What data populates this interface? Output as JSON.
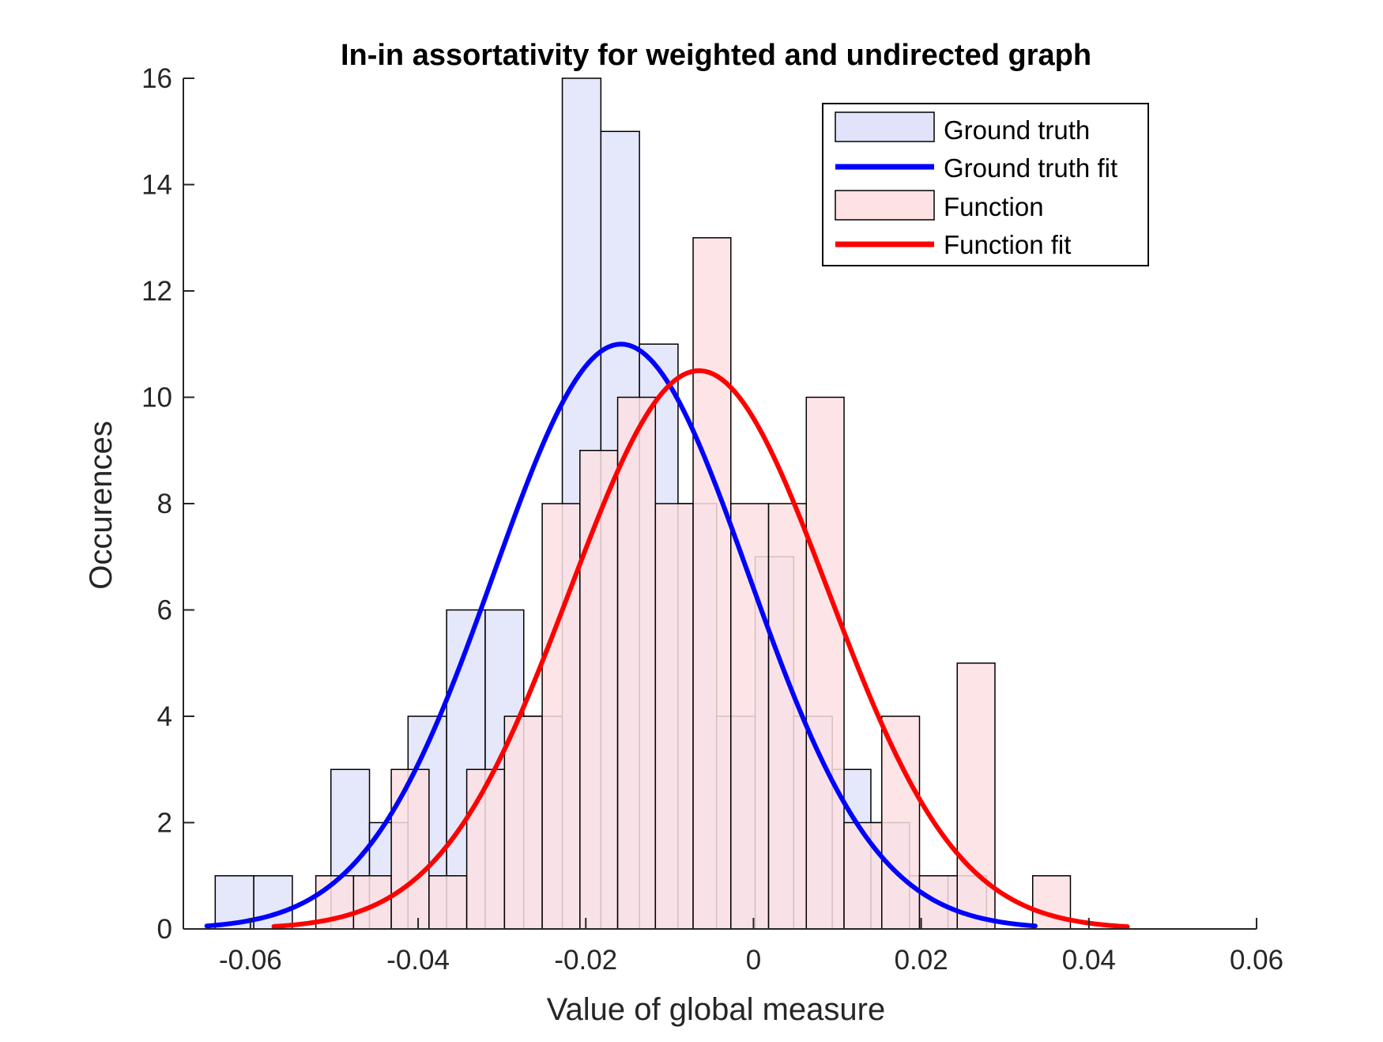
{
  "chart_data": {
    "type": "bar",
    "title": "In-in assortativity for weighted and undirected graph",
    "xlabel": "Value of global measure",
    "ylabel": "Occurences",
    "xlim": [
      -0.068,
      0.06
    ],
    "ylim": [
      0,
      16
    ],
    "xticks": [
      -0.06,
      -0.04,
      -0.02,
      0,
      0.02,
      0.04,
      0.06
    ],
    "xtick_labels": [
      "-0.06",
      "-0.04",
      "-0.02",
      "0",
      "0.02",
      "0.04",
      "0.06"
    ],
    "yticks": [
      0,
      2,
      4,
      6,
      8,
      10,
      12,
      14,
      16
    ],
    "ytick_labels": [
      "0",
      "2",
      "4",
      "6",
      "8",
      "10",
      "12",
      "14",
      "16"
    ],
    "grid": false,
    "legend_position": "top-right",
    "series": [
      {
        "name": "Ground truth",
        "kind": "histogram",
        "face_color": "#e0e3fa",
        "edge_color": "#000000",
        "bin_width": 0.0046,
        "bin_left_edges": [
          -0.0642,
          -0.0596,
          -0.055,
          -0.0504,
          -0.0458,
          -0.0412,
          -0.0366,
          -0.032,
          -0.0274,
          -0.0228,
          -0.0182,
          -0.0136,
          -0.009,
          -0.0044,
          0.0002,
          0.0048,
          0.0094,
          0.014,
          0.0186,
          0.0232
        ],
        "values": [
          1,
          1,
          0,
          3,
          2,
          4,
          6,
          6,
          4,
          16,
          15,
          11,
          8,
          4,
          7,
          4,
          3,
          2,
          1,
          1
        ]
      },
      {
        "name": "Ground truth fit",
        "kind": "normal_fit",
        "color": "#0000ff",
        "mu": -0.0158,
        "peak": 11.0,
        "sigma": 0.0152,
        "x_range": [
          -0.0652,
          0.0336
        ]
      },
      {
        "name": "Function",
        "kind": "histogram",
        "face_color": "#fde1e3",
        "edge_color": "#000000",
        "bin_width": 0.0045,
        "bin_left_edges": [
          -0.0522,
          -0.0477,
          -0.0432,
          -0.0387,
          -0.0342,
          -0.0297,
          -0.0252,
          -0.0207,
          -0.0162,
          -0.0117,
          -0.0072,
          -0.0027,
          0.0018,
          0.0063,
          0.0108,
          0.0153,
          0.0198,
          0.0243,
          0.0288,
          0.0333
        ],
        "values": [
          1,
          1,
          3,
          1,
          3,
          4,
          8,
          9,
          10,
          8,
          13,
          8,
          8,
          10,
          2,
          4,
          1,
          5,
          0,
          1
        ]
      },
      {
        "name": "Function fit",
        "kind": "normal_fit",
        "color": "#ff0000",
        "mu": -0.0065,
        "peak": 10.5,
        "sigma": 0.0154,
        "x_range": [
          -0.0572,
          0.0446
        ]
      }
    ]
  }
}
